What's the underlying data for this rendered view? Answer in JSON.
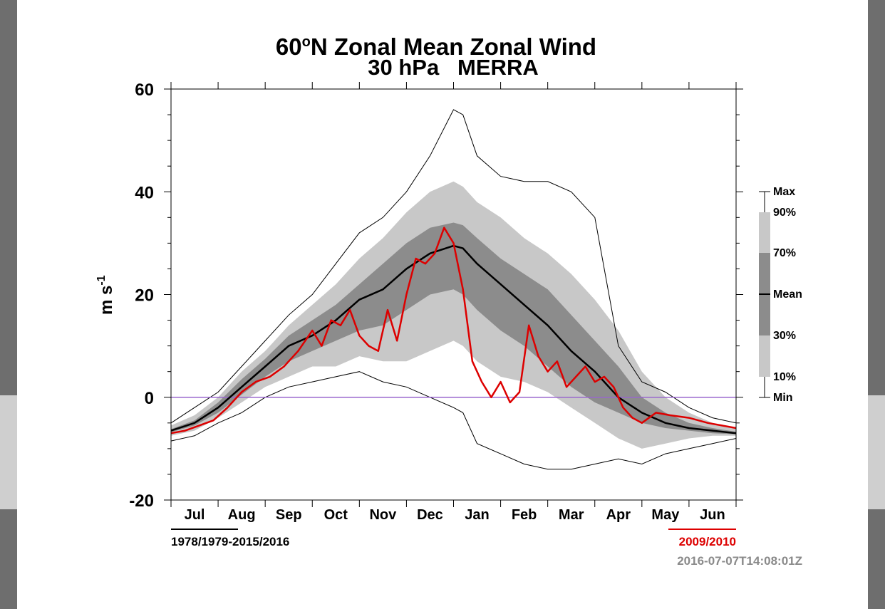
{
  "chart_data": {
    "type": "line",
    "title": "60°N Zonal Mean Zonal Wind",
    "title_main": "60",
    "title_sup": "o",
    "title_rest": "N Zonal Mean Zonal Wind",
    "subtitle": "30 hPa   MERRA",
    "ylabel_main": "m s",
    "ylabel_sup": "-1",
    "ylim": [
      -20,
      60
    ],
    "yticks": [
      {
        "value": 60,
        "label": "60"
      },
      {
        "value": 40,
        "label": "40"
      },
      {
        "value": 20,
        "label": "20"
      },
      {
        "value": 0,
        "label": "0"
      },
      {
        "value": -20,
        "label": "-20"
      }
    ],
    "months": [
      "Jul",
      "Aug",
      "Sep",
      "Oct",
      "Nov",
      "Dec",
      "Jan",
      "Feb",
      "Mar",
      "Apr",
      "May",
      "Jun"
    ],
    "x_unit": "month index (0 = start of Jul, 12 = end of Jun)",
    "xlim": [
      0,
      12
    ],
    "zero_line_color": "#9966cc",
    "climatology": {
      "label": "1978/1979-2015/2016",
      "color": "#000000",
      "x": [
        0,
        0.5,
        1.0,
        1.5,
        2.0,
        2.5,
        3.0,
        3.5,
        4.0,
        4.5,
        5.0,
        5.5,
        6.0,
        6.2,
        6.5,
        7.0,
        7.5,
        8.0,
        8.5,
        9.0,
        9.5,
        10.0,
        10.5,
        11.0,
        11.5,
        12.0
      ],
      "mean": [
        -6.5,
        -5,
        -2,
        2,
        6,
        10,
        12,
        15,
        19,
        21,
        25,
        28,
        29.5,
        29,
        26,
        22,
        18,
        14,
        9,
        5,
        0,
        -3,
        -5,
        -6,
        -6.5,
        -7
      ],
      "p30": [
        -6.8,
        -5.5,
        -3,
        0.5,
        4,
        7,
        9,
        11,
        13,
        14,
        17,
        20,
        21,
        20,
        17,
        13,
        10,
        6,
        2,
        -1,
        -3,
        -5,
        -6,
        -6.5,
        -7,
        -7.2
      ],
      "p70": [
        -6.2,
        -4.5,
        -1,
        3.5,
        7.5,
        12,
        15,
        18,
        22,
        26,
        30,
        33,
        34,
        33.5,
        31,
        27,
        24,
        21,
        16,
        11,
        6,
        0,
        -3,
        -5,
        -6,
        -6.7
      ],
      "p10": [
        -7.5,
        -6.5,
        -4,
        -1,
        2,
        4,
        6,
        6,
        8,
        7,
        7,
        9,
        11,
        10,
        7,
        4,
        3,
        1,
        -2,
        -5,
        -8,
        -10,
        -9,
        -8,
        -7.5,
        -7.5
      ],
      "p90": [
        -5.5,
        -3.5,
        0,
        5,
        9,
        14,
        18,
        22,
        27,
        31,
        36,
        40,
        42,
        41,
        38,
        35,
        31,
        28,
        24,
        19,
        13,
        5,
        0,
        -3,
        -5,
        -6
      ],
      "min": [
        -8.5,
        -7.5,
        -5,
        -3,
        0,
        2,
        3,
        4,
        5,
        3,
        2,
        0,
        -2,
        -3,
        -9,
        -11,
        -13,
        -14,
        -14,
        -13,
        -12,
        -13,
        -11,
        -10,
        -9,
        -8
      ],
      "max": [
        -5,
        -2,
        1,
        6,
        11,
        16,
        20,
        26,
        32,
        35,
        40,
        47,
        56,
        55,
        47,
        43,
        42,
        42,
        40,
        35,
        10,
        3,
        1,
        -2,
        -4,
        -5
      ]
    },
    "highlight": {
      "label": "2009/2010",
      "color": "#dd0000",
      "x": [
        0,
        0.3,
        0.6,
        0.9,
        1.2,
        1.5,
        1.8,
        2.1,
        2.4,
        2.7,
        3.0,
        3.2,
        3.4,
        3.6,
        3.8,
        4.0,
        4.2,
        4.4,
        4.6,
        4.8,
        5.0,
        5.2,
        5.4,
        5.6,
        5.8,
        6.0,
        6.2,
        6.4,
        6.6,
        6.8,
        7.0,
        7.2,
        7.4,
        7.6,
        7.8,
        8.0,
        8.2,
        8.4,
        8.6,
        8.8,
        9.0,
        9.2,
        9.4,
        9.6,
        9.8,
        10.0,
        10.3,
        10.6,
        11.0,
        11.4,
        11.7,
        12.0
      ],
      "y": [
        -7,
        -6.5,
        -5.5,
        -4.5,
        -2,
        1,
        3,
        4,
        6,
        9,
        13,
        10,
        15,
        14,
        17,
        12,
        10,
        9,
        17,
        11,
        20,
        27,
        26,
        28,
        33,
        30,
        21,
        7,
        3,
        0,
        3,
        -1,
        1,
        14,
        8,
        5,
        7,
        2,
        4,
        6,
        3,
        4,
        2,
        -2,
        -4,
        -5,
        -3,
        -3.5,
        -4,
        -5,
        -5.5,
        -6
      ]
    }
  },
  "legend": {
    "items": [
      "Max",
      "90%",
      "70%",
      "Mean",
      "30%",
      "10%",
      "Min"
    ]
  },
  "footer": {
    "left_label": "1978/1979-2015/2016",
    "right_label": "2009/2010",
    "timestamp": "2016-07-07T14:08:01Z"
  },
  "colors": {
    "band_10_90": "#c8c8c8",
    "band_30_70": "#8c8c8c",
    "axis": "#000000"
  }
}
